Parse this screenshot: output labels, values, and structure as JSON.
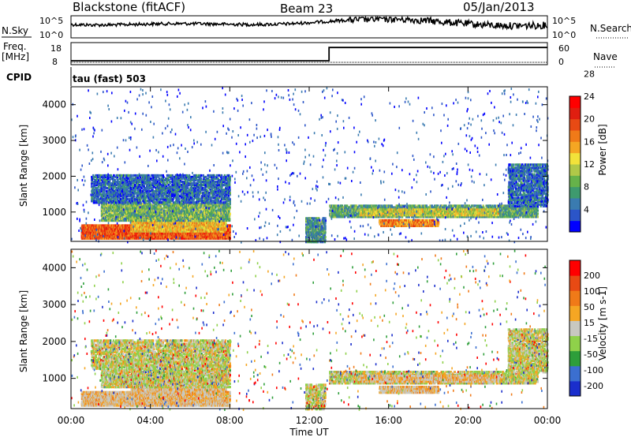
{
  "header": {
    "station": "Blackstone (fitACF)",
    "beam": "Beam 23",
    "date": "05/Jan/2013"
  },
  "panels": {
    "nsky_label": "N.Sky",
    "nsky_ticks": [
      "10^5",
      "10^0"
    ],
    "nsearch_label": "N.Search",
    "freq_label": "Freq.",
    "freq_unit": "[MHz]",
    "freq_ticks": [
      "18",
      "8"
    ],
    "nave_label": "Nave",
    "nave_ticks": [
      "60",
      "0"
    ],
    "cpid_label": "CPID",
    "cpid_value": "tau (fast) 503"
  },
  "colors": {
    "power": [
      "#0000ff",
      "#2b55c8",
      "#3a7bb0",
      "#3e9a6e",
      "#66b24a",
      "#b0c848",
      "#f2e23a",
      "#f5a623",
      "#f07a18",
      "#e84a14",
      "#e01e10",
      "#ff0000"
    ],
    "velocity": [
      "#1a2ecc",
      "#3b6fd0",
      "#2e9e3a",
      "#8fd14a",
      "#c8c8c0",
      "#f5a623",
      "#f07a18",
      "#e84a14",
      "#ff0000"
    ]
  },
  "chart_data": [
    {
      "type": "line",
      "name": "nsky-panel",
      "ylabel": "N.Sky",
      "y_ticks": [
        "10^5",
        "10^0"
      ]
    },
    {
      "type": "line",
      "name": "freq-panel",
      "ylabel": "Freq. [MHz]",
      "y_ticks": [
        18,
        8
      ],
      "right_ticks": [
        60,
        0
      ],
      "freq_profile": {
        "before": 10.5,
        "after": 16.5,
        "switch_hour": 13.0
      }
    },
    {
      "type": "heatmap",
      "name": "power-panel",
      "ylabel": "Slant Range [km]",
      "ylim": [
        180,
        4500
      ],
      "y_ticks": [
        1000,
        2000,
        3000,
        4000
      ],
      "xlim": [
        0,
        24
      ],
      "colorbar": {
        "label": "Power [dB]",
        "ticks": [
          "4",
          "8",
          "12",
          "16",
          "20",
          "24",
          "28"
        ],
        "range": [
          0,
          30
        ]
      }
    },
    {
      "type": "heatmap",
      "name": "velocity-panel",
      "ylabel": "Slant Range [km]",
      "xlabel": "Time UT",
      "ylim": [
        180,
        4500
      ],
      "y_ticks": [
        1000,
        2000,
        3000,
        4000
      ],
      "xlim": [
        0,
        24
      ],
      "x_ticks": [
        "00:00",
        "04:00",
        "08:00",
        "12:00",
        "16:00",
        "20:00",
        "00:00"
      ],
      "colorbar": {
        "label": "Velocity [m s-1]",
        "ticks": [
          "200",
          "100",
          "50",
          "15",
          "-15",
          "-50",
          "-100",
          "-200"
        ]
      }
    }
  ],
  "scatter": {
    "regions": [
      {
        "t0": 0.5,
        "t1": 8.0,
        "r0": 300,
        "r1": 700,
        "lvl": 0.85
      },
      {
        "t0": 3.0,
        "t1": 7.8,
        "r0": 500,
        "r1": 1050,
        "lvl": 0.65
      },
      {
        "t0": 1.5,
        "t1": 8.0,
        "r0": 800,
        "r1": 1300,
        "lvl": 0.4
      },
      {
        "t0": 1.0,
        "t1": 8.0,
        "r0": 1300,
        "r1": 2100,
        "lvl": 0.2
      },
      {
        "t0": 13.0,
        "t1": 23.5,
        "r0": 900,
        "r1": 1250,
        "lvl": 0.35
      },
      {
        "t0": 14.5,
        "t1": 21.5,
        "r0": 950,
        "r1": 1150,
        "lvl": 0.55
      },
      {
        "t0": 15.5,
        "t1": 18.5,
        "r0": 650,
        "r1": 850,
        "lvl": 0.75
      },
      {
        "t0": 22.0,
        "t1": 24.0,
        "r0": 1200,
        "r1": 2400,
        "lvl": 0.2
      },
      {
        "t0": 11.8,
        "t1": 12.8,
        "r0": 200,
        "r1": 900,
        "lvl": 0.3
      }
    ]
  }
}
